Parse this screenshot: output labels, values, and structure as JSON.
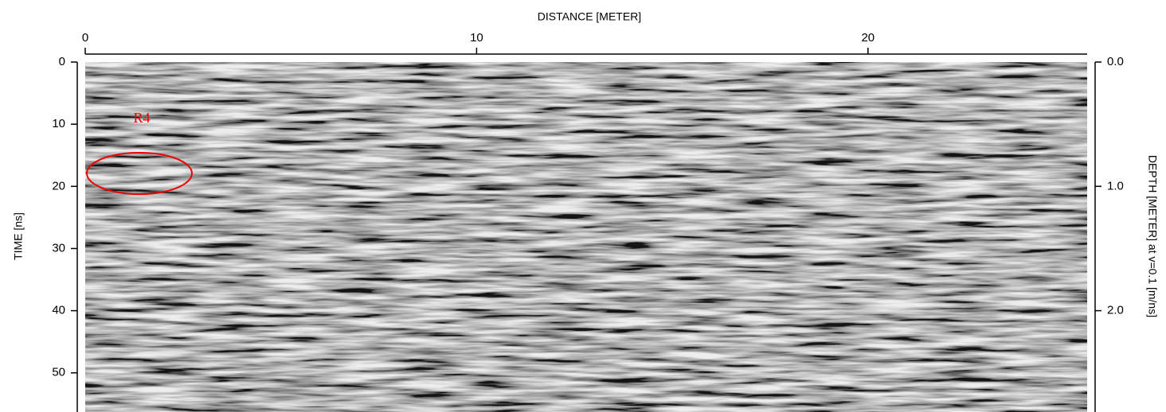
{
  "chart_data": {
    "type": "radargram",
    "x_label": "DISTANCE [METER]",
    "y_label": "TIME [ns]",
    "y2_label": "DEPTH [METER] at v=0.1 [m/ns]",
    "xlim": [
      0,
      25.6
    ],
    "xticks": [
      0,
      10,
      20
    ],
    "ylim": [
      0,
      56.3
    ],
    "yticks": [
      0,
      10,
      20,
      30,
      40,
      50
    ],
    "y2lim": [
      0,
      2.815
    ],
    "y2ticks": [
      {
        "value": 0,
        "label": "0.0"
      },
      {
        "value": 1,
        "label": "1.0"
      },
      {
        "value": 2,
        "label": "2.0"
      }
    ],
    "annotations": [
      {
        "text": "R4"
      }
    ]
  }
}
